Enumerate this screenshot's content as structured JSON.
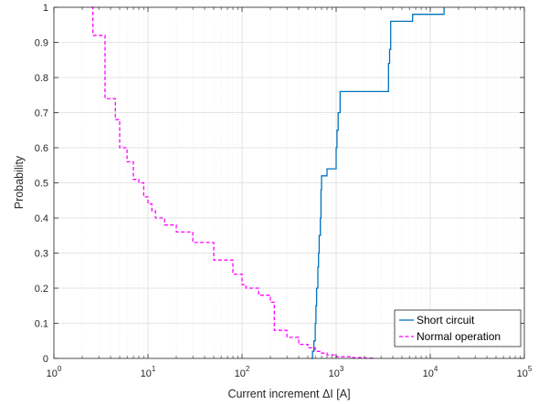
{
  "chart_data": {
    "type": "line",
    "xlabel": "Current increment ΔI [A]",
    "ylabel": "Probability",
    "xscale": "log",
    "xlim": [
      1,
      100000
    ],
    "ylim": [
      0,
      1
    ],
    "grid": true,
    "legend_placement": "bottom-right",
    "x_ticks": [
      {
        "value": 1,
        "base": "10",
        "exp": "0"
      },
      {
        "value": 10,
        "base": "10",
        "exp": "1"
      },
      {
        "value": 100,
        "base": "10",
        "exp": "2"
      },
      {
        "value": 1000,
        "base": "10",
        "exp": "3"
      },
      {
        "value": 10000,
        "base": "10",
        "exp": "4"
      },
      {
        "value": 100000,
        "base": "10",
        "exp": "5"
      }
    ],
    "y_ticks": [
      {
        "value": 0,
        "label": "0"
      },
      {
        "value": 0.1,
        "label": "0.1"
      },
      {
        "value": 0.2,
        "label": "0.2"
      },
      {
        "value": 0.3,
        "label": "0.3"
      },
      {
        "value": 0.4,
        "label": "0.4"
      },
      {
        "value": 0.5,
        "label": "0.5"
      },
      {
        "value": 0.6,
        "label": "0.6"
      },
      {
        "value": 0.7,
        "label": "0.7"
      },
      {
        "value": 0.8,
        "label": "0.8"
      },
      {
        "value": 0.9,
        "label": "0.9"
      },
      {
        "value": 1,
        "label": "1"
      }
    ],
    "series": [
      {
        "name": "Short circuit",
        "color": "#0072BD",
        "dash": "solid",
        "x": [
          540,
          560,
          580,
          600,
          610,
          620,
          640,
          650,
          660,
          680,
          690,
          700,
          720,
          780,
          800,
          900,
          1000,
          1020,
          1050,
          1100,
          3500,
          3600,
          3700,
          3800,
          6500,
          14000
        ],
        "y": [
          0,
          0.02,
          0.05,
          0.1,
          0.15,
          0.2,
          0.26,
          0.3,
          0.35,
          0.4,
          0.48,
          0.52,
          0.52,
          0.52,
          0.54,
          0.54,
          0.6,
          0.65,
          0.7,
          0.76,
          0.76,
          0.84,
          0.88,
          0.96,
          0.98,
          1.0
        ]
      },
      {
        "name": "Normal operation",
        "color": "#FF00FF",
        "dash": "dashed",
        "x": [
          2.5,
          2.6,
          3.3,
          3.5,
          4,
          4.5,
          4.8,
          5,
          5.5,
          6,
          6.5,
          7,
          8,
          9,
          10,
          11,
          12,
          15,
          20,
          30,
          50,
          80,
          100,
          110,
          150,
          200,
          220,
          300,
          400,
          500,
          600,
          700,
          800,
          1000,
          1500,
          2000,
          2500
        ],
        "y": [
          1.0,
          0.92,
          0.92,
          0.74,
          0.74,
          0.68,
          0.68,
          0.6,
          0.6,
          0.56,
          0.56,
          0.51,
          0.5,
          0.46,
          0.44,
          0.42,
          0.4,
          0.38,
          0.36,
          0.33,
          0.28,
          0.24,
          0.21,
          0.2,
          0.18,
          0.16,
          0.08,
          0.06,
          0.04,
          0.03,
          0.02,
          0.015,
          0.01,
          0.005,
          0.002,
          0.001,
          0
        ]
      }
    ]
  }
}
